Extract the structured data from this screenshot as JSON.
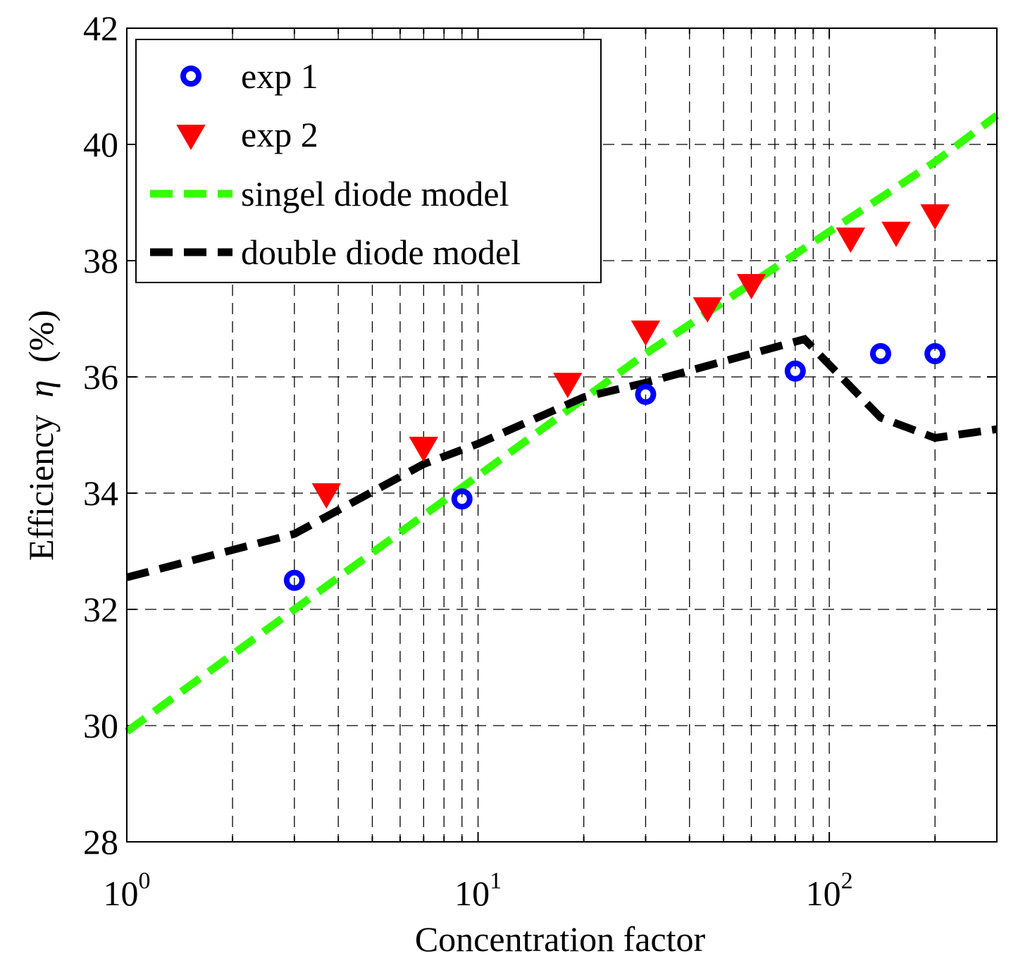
{
  "chart_data": {
    "type": "scatter",
    "xlabel": "Concentration factor",
    "ylabel_text": "Efficiency",
    "ylabel_symbol": "η",
    "ylabel_unit": "(%)",
    "xscale": "log",
    "xlim": [
      1,
      300
    ],
    "ylim": [
      28,
      42
    ],
    "x_ticks": [
      {
        "base": "10",
        "exp": "0",
        "value": 1
      },
      {
        "base": "10",
        "exp": "1",
        "value": 10
      },
      {
        "base": "10",
        "exp": "2",
        "value": 100
      }
    ],
    "y_ticks": [
      "28",
      "30",
      "32",
      "34",
      "36",
      "38",
      "40",
      "42"
    ],
    "grid": true,
    "legend_position": "top-left",
    "series": [
      {
        "name": "exp 1",
        "kind": "marker-circle",
        "color": "#0000ff",
        "points": [
          [
            3,
            32.5
          ],
          [
            9,
            33.9
          ],
          [
            30,
            35.7
          ],
          [
            80,
            36.1
          ],
          [
            140,
            36.4
          ],
          [
            200,
            36.4
          ]
        ]
      },
      {
        "name": "exp 2",
        "kind": "marker-triangle-down",
        "color": "#ff0000",
        "points": [
          [
            3.7,
            34.0
          ],
          [
            7,
            34.8
          ],
          [
            18,
            35.9
          ],
          [
            30,
            36.8
          ],
          [
            45,
            37.2
          ],
          [
            60,
            37.6
          ],
          [
            115,
            38.4
          ],
          [
            155,
            38.5
          ],
          [
            200,
            38.8
          ]
        ]
      },
      {
        "name": "singel diode model",
        "kind": "dashed-line",
        "color": "#33ff00",
        "points": [
          [
            1,
            29.9
          ],
          [
            3,
            32.0
          ],
          [
            10,
            34.3
          ],
          [
            30,
            36.4
          ],
          [
            100,
            38.5
          ],
          [
            200,
            39.7
          ],
          [
            300,
            40.5
          ]
        ]
      },
      {
        "name": "double diode model",
        "kind": "dashed-line",
        "color": "#000000",
        "points": [
          [
            1,
            32.55
          ],
          [
            3,
            33.3
          ],
          [
            7,
            34.5
          ],
          [
            10,
            34.85
          ],
          [
            20,
            35.65
          ],
          [
            30,
            35.9
          ],
          [
            85,
            36.65
          ],
          [
            140,
            35.3
          ],
          [
            200,
            34.95
          ],
          [
            300,
            35.1
          ]
        ]
      }
    ]
  }
}
